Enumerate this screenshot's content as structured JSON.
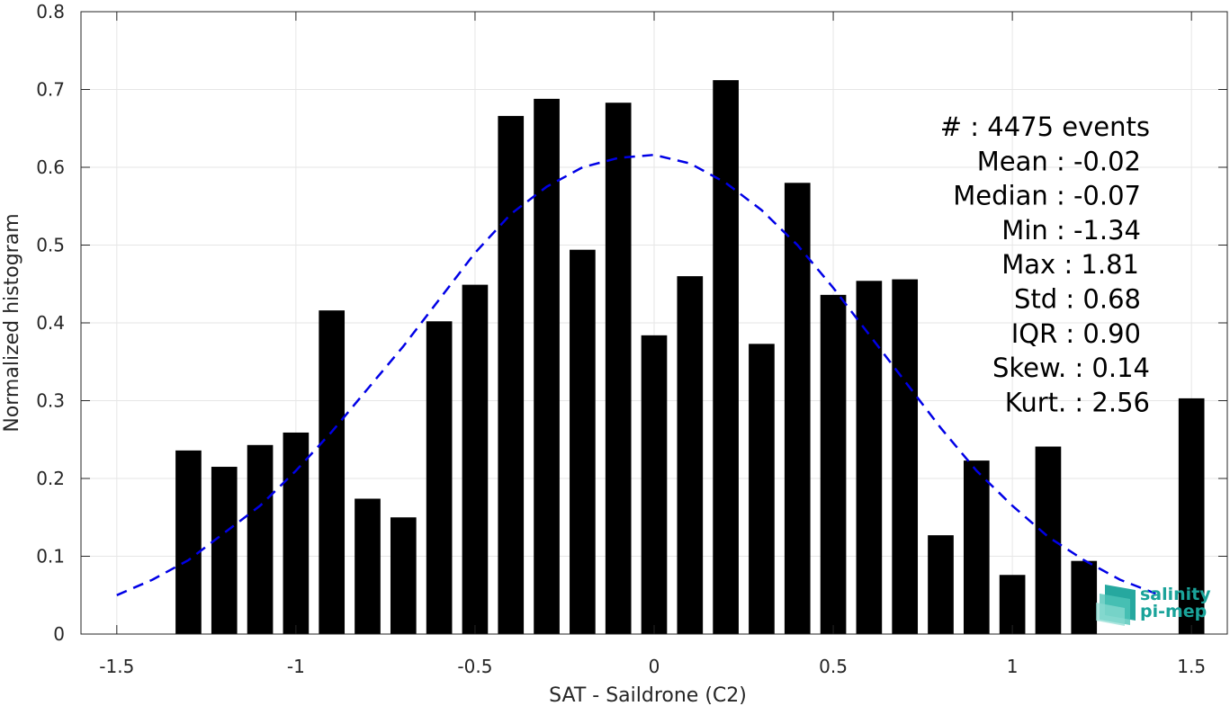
{
  "chart_data": {
    "type": "bar",
    "xlabel": "SAT - Saildrone (C2)",
    "ylabel": "Normalized histogram",
    "xlim": [
      -1.6,
      1.6
    ],
    "ylim": [
      0,
      0.8
    ],
    "xticks": [
      -1.5,
      -1,
      -0.5,
      0,
      0.5,
      1,
      1.5
    ],
    "xtick_labels": [
      "-1.5",
      "-1",
      "-0.5",
      "0",
      "0.5",
      "1",
      "1.5"
    ],
    "yticks": [
      0,
      0.1,
      0.2,
      0.3,
      0.4,
      0.5,
      0.6,
      0.7,
      0.8
    ],
    "ytick_labels": [
      "0",
      "0.1",
      "0.2",
      "0.3",
      "0.4",
      "0.5",
      "0.6",
      "0.7",
      "0.8"
    ],
    "grid": true,
    "bar_color": "#000000",
    "bars": {
      "x": [
        -1.3,
        -1.2,
        -1.1,
        -1.0,
        -0.9,
        -0.8,
        -0.7,
        -0.6,
        -0.5,
        -0.4,
        -0.3,
        -0.2,
        -0.1,
        0.0,
        0.1,
        0.2,
        0.3,
        0.4,
        0.5,
        0.6,
        0.7,
        0.8,
        0.9,
        1.0,
        1.1,
        1.2,
        1.5
      ],
      "values": [
        0.236,
        0.215,
        0.243,
        0.259,
        0.416,
        0.174,
        0.15,
        0.402,
        0.449,
        0.666,
        0.688,
        0.494,
        0.683,
        0.384,
        0.46,
        0.712,
        0.373,
        0.58,
        0.436,
        0.454,
        0.456,
        0.127,
        0.223,
        0.076,
        0.241,
        0.094,
        0.303
      ]
    },
    "fit_curve": {
      "style": "dashed",
      "color": "#0000e6",
      "x": [
        -1.5,
        -1.4,
        -1.3,
        -1.2,
        -1.1,
        -1.0,
        -0.9,
        -0.8,
        -0.7,
        -0.6,
        -0.5,
        -0.4,
        -0.3,
        -0.2,
        -0.1,
        0.0,
        0.1,
        0.2,
        0.3,
        0.4,
        0.5,
        0.6,
        0.7,
        0.8,
        0.9,
        1.0,
        1.1,
        1.2,
        1.3,
        1.4
      ],
      "y": [
        0.05,
        0.07,
        0.095,
        0.13,
        0.165,
        0.21,
        0.26,
        0.315,
        0.37,
        0.43,
        0.49,
        0.54,
        0.575,
        0.6,
        0.612,
        0.616,
        0.605,
        0.58,
        0.545,
        0.5,
        0.445,
        0.385,
        0.325,
        0.265,
        0.21,
        0.165,
        0.125,
        0.095,
        0.07,
        0.052
      ]
    },
    "stats": [
      {
        "label": "#",
        "sep": ":",
        "value": "4475 events"
      },
      {
        "label": "Mean",
        "sep": ":",
        "value": "-0.02"
      },
      {
        "label": "Median",
        "sep": ":",
        "value": "-0.07"
      },
      {
        "label": "Min",
        "sep": ":",
        "value": "-1.34"
      },
      {
        "label": "Max",
        "sep": ":",
        "value": "1.81"
      },
      {
        "label": "Std",
        "sep": ":",
        "value": "0.68"
      },
      {
        "label": "IQR",
        "sep": ":",
        "value": "0.90"
      },
      {
        "label": "Skew.",
        "sep": ":",
        "value": "0.14"
      },
      {
        "label": "Kurt.",
        "sep": ":",
        "value": "2.56"
      }
    ]
  },
  "logo": {
    "line1": "salinity",
    "line2": "pi-mep",
    "color": "#1aa39a"
  }
}
